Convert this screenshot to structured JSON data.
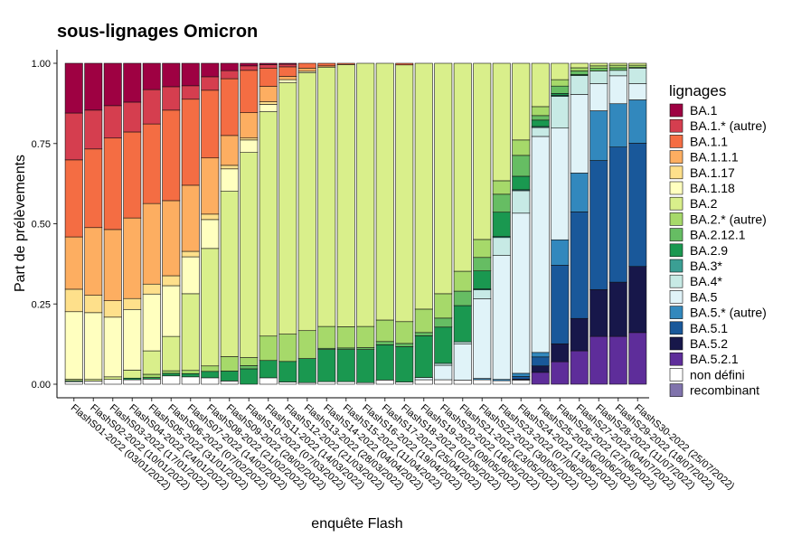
{
  "chart_data": {
    "type": "stacked_bar",
    "title": "sous-lignages Omicron",
    "x_label": "enquête Flash",
    "y_label": "Part de prélèvements",
    "legend_title": "lignages",
    "legend_position": "right",
    "categories": [
      "FlashS01-2022 (03/01/2022)",
      "FlashS02-2022 (10/01/2022)",
      "FlashS03-2022 (17/01/2022)",
      "FlashS04-2022 (24/01/2022)",
      "FlashS05-2022 (31/01/2022)",
      "FlashS06-2022 (07/02/2022)",
      "FlashS07-2022 (14/02/2022)",
      "FlashS08-2022 (21/02/2022)",
      "FlashS09-2022 (28/02/2022)",
      "FlashS10-2022 (07/03/2022)",
      "FlashS11-2022 (14/03/2022)",
      "FlashS12-2022 (21/03/2022)",
      "FlashS13-2022 (28/03/2022)",
      "FlashS14-2022 (04/04/2022)",
      "FlashS15-2022 (11/04/2022)",
      "FlashS16-2022 (19/04/2022)",
      "FlashS17-2022 (25/04/2022)",
      "FlashS18-2022 (02/05/2022)",
      "FlashS19-2022 (09/05/2022)",
      "FlashS20-2022 (16/05/2022)",
      "FlashS21-2022 (23/05/2022)",
      "FlashS22-2022 (30/05/2022)",
      "FlashS23-2022 (07/06/2022)",
      "FlashS24-2022 (13/06/2022)",
      "FlashS25-2022 (20/06/2022)",
      "FlashS26-2022 (27/06/2022)",
      "FlashS27-2022 (04/07/2022)",
      "FlashS28-2022 (11/07/2022)",
      "FlashS29-2022 (18/07/2022)",
      "FlashS30-2022 (25/07/2022)"
    ],
    "ylim": [
      0,
      1
    ],
    "yticks": [
      {
        "value": 0,
        "label": "0.00"
      },
      {
        "value": 0.25,
        "label": "0.25"
      },
      {
        "value": 0.5,
        "label": "0.50"
      },
      {
        "value": 0.75,
        "label": "0.75"
      },
      {
        "value": 1,
        "label": "1.00"
      }
    ],
    "series": [
      {
        "name": "BA.1",
        "color": "#9e0142",
        "values": [
          0.155,
          0.146,
          0.132,
          0.121,
          0.082,
          0.073,
          0.07,
          0.042,
          0.023,
          0.008,
          0.004,
          0.003,
          0,
          0,
          0,
          0,
          0,
          0,
          0,
          0,
          0,
          0,
          0,
          0,
          0,
          0,
          0,
          0,
          0,
          0
        ]
      },
      {
        "name": "BA.1.* (autre)",
        "color": "#d53e4f",
        "values": [
          0.146,
          0.121,
          0.101,
          0.093,
          0.107,
          0.073,
          0.042,
          0.042,
          0.025,
          0.014,
          0.011,
          0.008,
          0,
          0,
          0,
          0,
          0,
          0,
          0,
          0,
          0,
          0,
          0,
          0,
          0,
          0,
          0,
          0,
          0,
          0
        ]
      },
      {
        "name": "BA.1.1",
        "color": "#f46d43",
        "values": [
          0.24,
          0.245,
          0.285,
          0.268,
          0.248,
          0.282,
          0.268,
          0.211,
          0.177,
          0.132,
          0.057,
          0.03,
          0.015,
          0.008,
          0.004,
          0,
          0,
          0.005,
          0,
          0,
          0,
          0,
          0,
          0,
          0,
          0,
          0,
          0,
          0,
          0
        ]
      },
      {
        "name": "BA.1.1.1",
        "color": "#fdae61",
        "values": [
          0.163,
          0.211,
          0.222,
          0.251,
          0.251,
          0.234,
          0.206,
          0.175,
          0.093,
          0.079,
          0.048,
          0.01,
          0.01,
          0.004,
          0,
          0,
          0,
          0,
          0,
          0,
          0,
          0,
          0,
          0,
          0,
          0,
          0,
          0,
          0,
          0
        ]
      },
      {
        "name": "BA.1.17",
        "color": "#fee08b",
        "values": [
          0.07,
          0.054,
          0.051,
          0.034,
          0.031,
          0.031,
          0.017,
          0.017,
          0.011,
          0.006,
          0.008,
          0,
          0,
          0,
          0,
          0,
          0,
          0,
          0,
          0,
          0,
          0,
          0,
          0,
          0,
          0,
          0,
          0,
          0,
          0
        ]
      },
      {
        "name": "BA.1.18",
        "color": "#ffffbf",
        "values": [
          0.21,
          0.208,
          0.186,
          0.189,
          0.177,
          0.158,
          0.115,
          0.09,
          0.07,
          0.039,
          0.023,
          0.01,
          0.005,
          0,
          0,
          0,
          0,
          0,
          0,
          0,
          0,
          0,
          0,
          0,
          0,
          0,
          0,
          0,
          0,
          0
        ]
      },
      {
        "name": "BA.2",
        "color": "#d9ef8b",
        "values": [
          0.005,
          0.005,
          0.008,
          0.025,
          0.073,
          0.107,
          0.239,
          0.366,
          0.515,
          0.639,
          0.699,
          0.783,
          0.803,
          0.808,
          0.817,
          0.82,
          0.8,
          0.8,
          0.766,
          0.718,
          0.648,
          0.549,
          0.366,
          0.239,
          0.135,
          0.051,
          0.014,
          0.008,
          0.006,
          0.006
        ]
      },
      {
        "name": "BA.2.* (autre)",
        "color": "#a6d96a",
        "values": [
          0,
          0,
          0,
          0,
          0.01,
          0.008,
          0.01,
          0.017,
          0.045,
          0.025,
          0.076,
          0.085,
          0.087,
          0.068,
          0.066,
          0.066,
          0.067,
          0.068,
          0.073,
          0.076,
          0.062,
          0.056,
          0.042,
          0.048,
          0.028,
          0.02,
          0.01,
          0.008,
          0.008,
          0.006
        ]
      },
      {
        "name": "BA.2.12.1",
        "color": "#66bd63",
        "values": [
          0,
          0,
          0,
          0,
          0,
          0,
          0,
          0,
          0,
          0.01,
          0,
          0,
          0,
          0.004,
          0.005,
          0.006,
          0.01,
          0.01,
          0.01,
          0.028,
          0.045,
          0.042,
          0.056,
          0.065,
          0.014,
          0.023,
          0.011,
          0.008,
          0.008,
          0.003
        ]
      },
      {
        "name": "BA.2.9",
        "color": "#1a9850",
        "values": [
          0.003,
          0,
          0,
          0.005,
          0.005,
          0.008,
          0.01,
          0.02,
          0.031,
          0.048,
          0.054,
          0.064,
          0.075,
          0.1,
          0.1,
          0.103,
          0.11,
          0.11,
          0.13,
          0.113,
          0.113,
          0.056,
          0.076,
          0.042,
          0.02,
          0.006,
          0.003,
          0,
          0,
          0
        ]
      },
      {
        "name": "BA.3*",
        "color": "#3b9f94",
        "values": [
          0,
          0,
          0,
          0,
          0,
          0,
          0,
          0,
          0,
          0,
          0,
          0,
          0,
          0,
          0,
          0,
          0,
          0,
          0,
          0,
          0,
          0.003,
          0.003,
          0.003,
          0.003,
          0.003,
          0,
          0,
          0,
          0
        ]
      },
      {
        "name": "BA.4*",
        "color": "#c7eae5",
        "values": [
          0,
          0,
          0,
          0,
          0,
          0,
          0,
          0,
          0,
          0,
          0,
          0,
          0,
          0,
          0,
          0,
          0,
          0,
          0,
          0.006,
          0.006,
          0.028,
          0.056,
          0.07,
          0.028,
          0.099,
          0.059,
          0.039,
          0.017,
          0.048
        ]
      },
      {
        "name": "BA.5",
        "color": "#e0f3f8",
        "values": [
          0,
          0,
          0,
          0,
          0,
          0,
          0,
          0,
          0,
          0,
          0,
          0,
          0,
          0,
          0,
          0,
          0,
          0,
          0.007,
          0.045,
          0.113,
          0.248,
          0.386,
          0.499,
          0.673,
          0.348,
          0.245,
          0.085,
          0.087,
          0.051
        ]
      },
      {
        "name": "BA.5.* (autre)",
        "color": "#3288bd",
        "values": [
          0,
          0,
          0,
          0,
          0,
          0,
          0,
          0,
          0,
          0,
          0,
          0,
          0,
          0,
          0,
          0,
          0,
          0,
          0,
          0,
          0,
          0.004,
          0.004,
          0.01,
          0.014,
          0.079,
          0.121,
          0.155,
          0.135,
          0.135
        ]
      },
      {
        "name": "BA.5.1",
        "color": "#19589a",
        "values": [
          0,
          0,
          0,
          0,
          0,
          0,
          0,
          0,
          0,
          0,
          0,
          0,
          0,
          0,
          0,
          0,
          0,
          0,
          0,
          0,
          0,
          0,
          0,
          0.008,
          0.028,
          0.245,
          0.332,
          0.402,
          0.421,
          0.384
        ]
      },
      {
        "name": "BA.5.2",
        "color": "#17174a",
        "values": [
          0,
          0,
          0,
          0,
          0,
          0,
          0,
          0,
          0,
          0,
          0,
          0,
          0,
          0,
          0,
          0,
          0,
          0,
          0,
          0,
          0,
          0,
          0,
          0.003,
          0.02,
          0.056,
          0.101,
          0.146,
          0.169,
          0.206
        ]
      },
      {
        "name": "BA.5.2.1",
        "color": "#5e2d9a",
        "values": [
          0,
          0,
          0,
          0,
          0,
          0,
          0,
          0,
          0,
          0,
          0,
          0,
          0,
          0,
          0,
          0,
          0,
          0,
          0,
          0,
          0,
          0,
          0,
          0,
          0.037,
          0.07,
          0.104,
          0.149,
          0.149,
          0.161
        ]
      },
      {
        "name": "non défini",
        "color": "#ffffff",
        "values": [
          0.008,
          0.01,
          0.015,
          0.014,
          0.016,
          0.026,
          0.023,
          0.02,
          0.01,
          0,
          0.02,
          0.007,
          0.005,
          0.008,
          0.008,
          0.005,
          0.013,
          0.007,
          0.014,
          0.014,
          0.013,
          0.014,
          0.011,
          0.013,
          0,
          0,
          0,
          0,
          0,
          0
        ]
      },
      {
        "name": "recombinant",
        "color": "#8073ac",
        "values": [
          0,
          0,
          0,
          0,
          0,
          0,
          0,
          0,
          0,
          0,
          0,
          0,
          0,
          0,
          0,
          0,
          0,
          0,
          0,
          0,
          0,
          0,
          0,
          0,
          0,
          0,
          0,
          0,
          0,
          0
        ]
      }
    ]
  }
}
